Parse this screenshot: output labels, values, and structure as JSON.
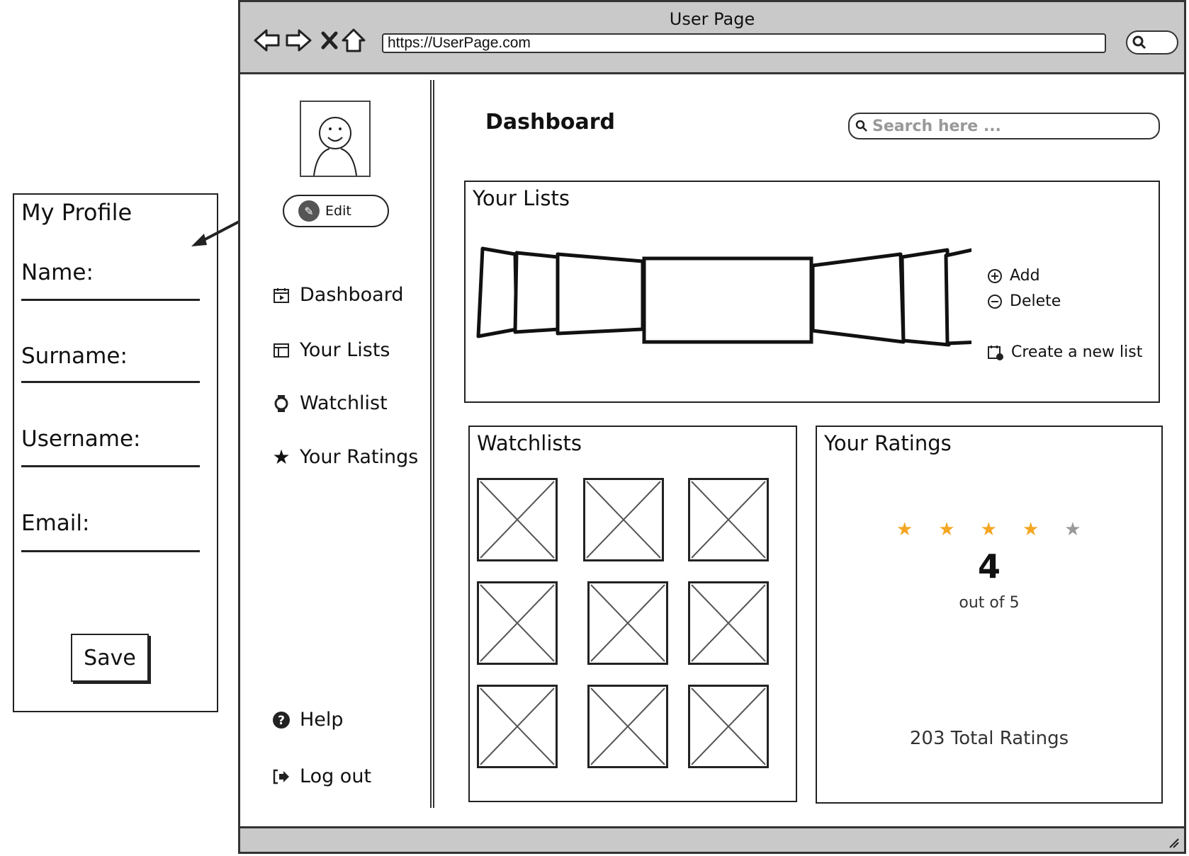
{
  "profile_panel": {
    "title": "My Profile",
    "fields": [
      {
        "label": "Name:"
      },
      {
        "label": "Surname:"
      },
      {
        "label": "Username:"
      },
      {
        "label": "Email:"
      }
    ],
    "save_label": "Save"
  },
  "browser": {
    "title": "User Page",
    "url": "https://UserPage.com",
    "nav_icons": [
      "back-icon",
      "forward-icon",
      "close-icon",
      "home-icon"
    ]
  },
  "sidebar": {
    "edit_label": "Edit",
    "items": [
      {
        "label": "Dashboard",
        "icon": "calendar-icon"
      },
      {
        "label": "Your Lists",
        "icon": "layout-icon"
      },
      {
        "label": "Watchlist",
        "icon": "watch-icon"
      },
      {
        "label": "Your Ratings",
        "icon": "star-icon"
      }
    ],
    "bottom_items": [
      {
        "label": "Help",
        "icon": "help-icon"
      },
      {
        "label": "Log out",
        "icon": "logout-icon"
      }
    ]
  },
  "main": {
    "title": "Dashboard",
    "search_placeholder": "Search here ...",
    "your_lists": {
      "title": "Your Lists",
      "actions": {
        "add": "Add",
        "delete": "Delete",
        "create": "Create a new list"
      }
    },
    "watchlists": {
      "title": "Watchlists",
      "item_count": 9
    },
    "ratings": {
      "title": "Your Ratings",
      "rating": "4",
      "rating_value": 4,
      "max": 5,
      "out_of": "out of 5",
      "total": "203 Total Ratings",
      "star_color_on": "#f5a623",
      "star_color_off": "#999999"
    }
  }
}
